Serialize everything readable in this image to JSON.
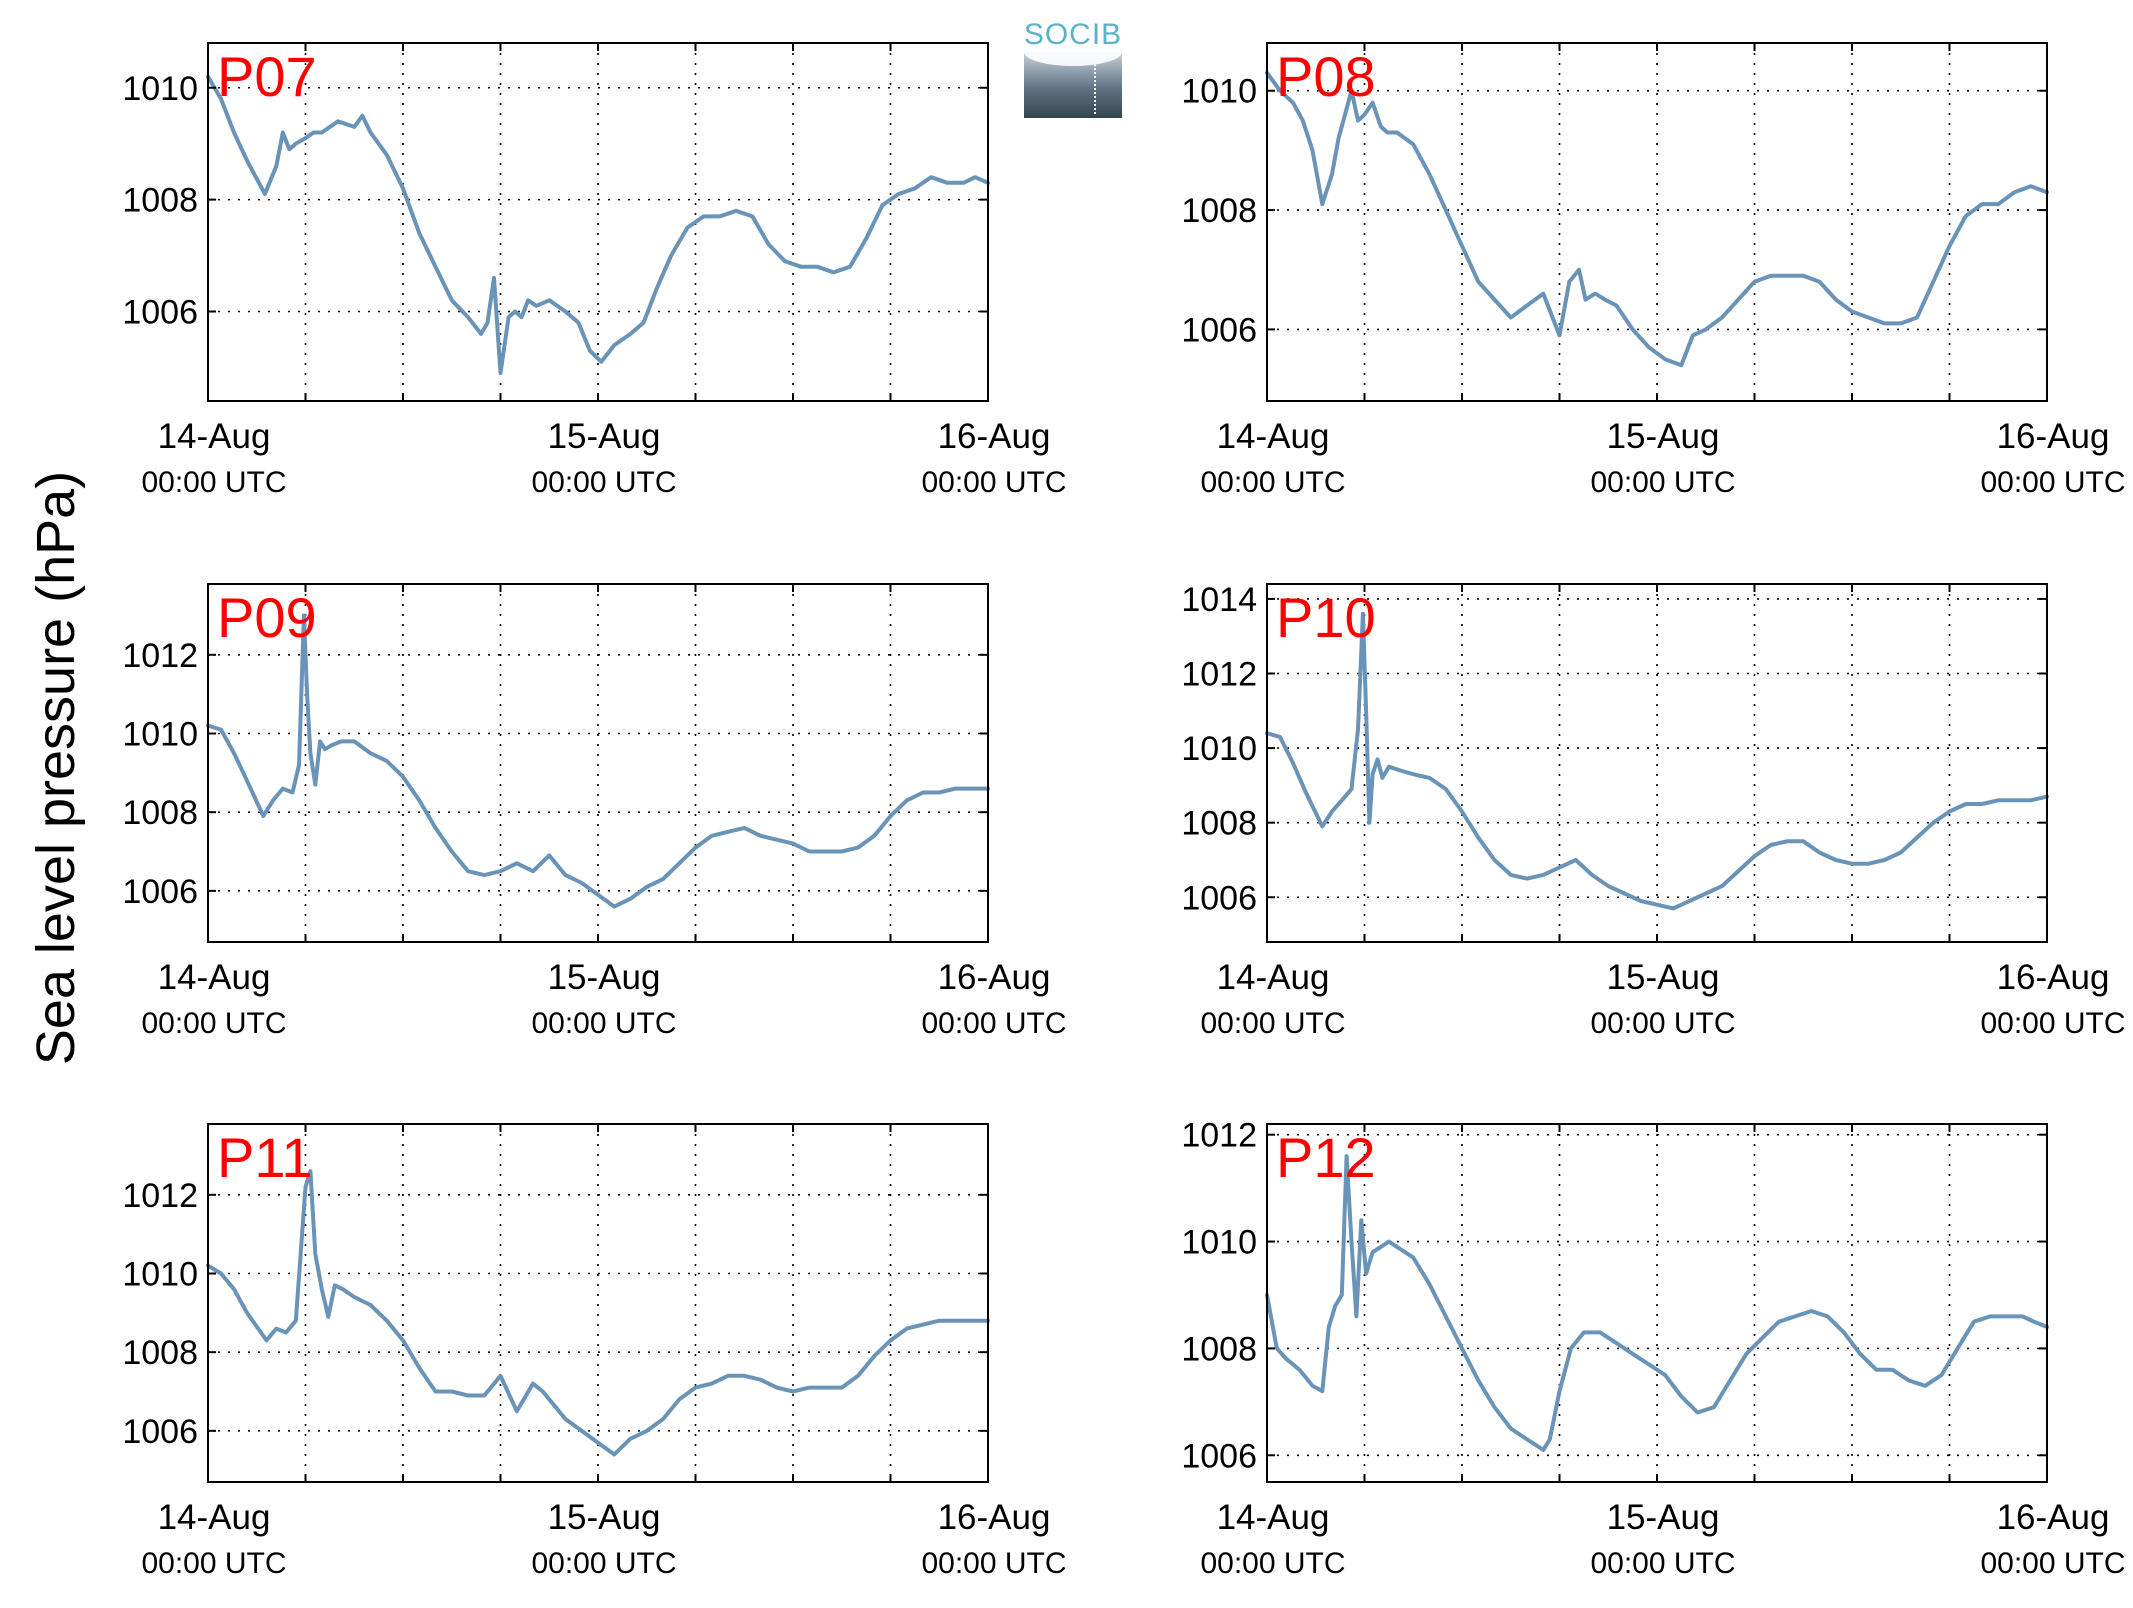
{
  "figure": {
    "ylabel": "Sea level pressure (hPa)",
    "logo_text": "SOCIB",
    "line_color": "#6a93b8",
    "station_label_color": "#ff0000",
    "grid": true
  },
  "chart_data": [
    {
      "type": "line",
      "station": "P07",
      "xlim": [
        0,
        48
      ],
      "ylim": [
        1004.4,
        1010.8
      ],
      "yticks": [
        1006,
        1008,
        1010
      ],
      "xticks": [
        {
          "at": 0,
          "date": "14-Aug",
          "time": "00:00 UTC"
        },
        {
          "at": 24,
          "date": "15-Aug",
          "time": "00:00 UTC"
        },
        {
          "at": 48,
          "date": "16-Aug",
          "time": "00:00 UTC"
        }
      ],
      "x": [
        0,
        0.8,
        1.6,
        2.4,
        3.5,
        4.2,
        4.6,
        5,
        5.4,
        6,
        6.5,
        7,
        8,
        9,
        9.5,
        10,
        11,
        12,
        13,
        14,
        15,
        16,
        16.8,
        17.2,
        17.6,
        18,
        18.5,
        18.9,
        19.3,
        19.7,
        20.2,
        21,
        22,
        22.8,
        23.5,
        24.2,
        25,
        26,
        26.8,
        27.6,
        28.5,
        29.5,
        30.5,
        31.5,
        32.5,
        33.5,
        34.5,
        35.5,
        36.5,
        37.5,
        38.5,
        39.5,
        40.5,
        41.5,
        42.5,
        43.5,
        44.5,
        45.5,
        46.5,
        47.2,
        48
      ],
      "y": [
        1010.2,
        1009.8,
        1009.2,
        1008.7,
        1008.1,
        1008.6,
        1009.2,
        1008.9,
        1009.0,
        1009.1,
        1009.2,
        1009.2,
        1009.4,
        1009.3,
        1009.5,
        1009.2,
        1008.8,
        1008.2,
        1007.4,
        1006.8,
        1006.2,
        1005.9,
        1005.6,
        1005.8,
        1006.6,
        1004.9,
        1005.9,
        1006.0,
        1005.9,
        1006.2,
        1006.1,
        1006.2,
        1006.0,
        1005.8,
        1005.3,
        1005.1,
        1005.4,
        1005.6,
        1005.8,
        1006.4,
        1007.0,
        1007.5,
        1007.7,
        1007.7,
        1007.8,
        1007.7,
        1007.2,
        1006.9,
        1006.8,
        1006.8,
        1006.7,
        1006.8,
        1007.3,
        1007.9,
        1008.1,
        1008.2,
        1008.4,
        1008.3,
        1008.3,
        1008.4,
        1008.3
      ]
    },
    {
      "type": "line",
      "station": "P08",
      "xlim": [
        0,
        48
      ],
      "ylim": [
        1004.8,
        1010.8
      ],
      "yticks": [
        1006,
        1008,
        1010
      ],
      "xticks": [
        {
          "at": 0,
          "date": "14-Aug",
          "time": "00:00 UTC"
        },
        {
          "at": 24,
          "date": "15-Aug",
          "time": "00:00 UTC"
        },
        {
          "at": 48,
          "date": "16-Aug",
          "time": "00:00 UTC"
        }
      ],
      "x": [
        0,
        0.8,
        1.6,
        2.2,
        2.8,
        3.4,
        4,
        4.4,
        4.8,
        5.2,
        5.6,
        6,
        6.5,
        7,
        7.4,
        8,
        9,
        10,
        11,
        12,
        13,
        14,
        15,
        16,
        17,
        18,
        18.6,
        19.2,
        19.6,
        20.2,
        20.8,
        21.5,
        22.5,
        23.5,
        24.5,
        25.5,
        26.2,
        27,
        28,
        29,
        30,
        31,
        32,
        33,
        34,
        35,
        36,
        37,
        38,
        39,
        40,
        41,
        42,
        43,
        44,
        45,
        46,
        47,
        48
      ],
      "y": [
        1010.3,
        1010.0,
        1009.8,
        1009.5,
        1009.0,
        1008.1,
        1008.6,
        1009.2,
        1009.6,
        1010.0,
        1009.5,
        1009.6,
        1009.8,
        1009.4,
        1009.3,
        1009.3,
        1009.1,
        1008.6,
        1008.0,
        1007.4,
        1006.8,
        1006.5,
        1006.2,
        1006.4,
        1006.6,
        1005.9,
        1006.8,
        1007.0,
        1006.5,
        1006.6,
        1006.5,
        1006.4,
        1006.0,
        1005.7,
        1005.5,
        1005.4,
        1005.9,
        1006.0,
        1006.2,
        1006.5,
        1006.8,
        1006.9,
        1006.9,
        1006.9,
        1006.8,
        1006.5,
        1006.3,
        1006.2,
        1006.1,
        1006.1,
        1006.2,
        1006.8,
        1007.4,
        1007.9,
        1008.1,
        1008.1,
        1008.3,
        1008.4,
        1008.3
      ]
    },
    {
      "type": "line",
      "station": "P09",
      "xlim": [
        0,
        48
      ],
      "ylim": [
        1004.7,
        1013.8
      ],
      "yticks": [
        1006,
        1008,
        1010,
        1012
      ],
      "xticks": [
        {
          "at": 0,
          "date": "14-Aug",
          "time": "00:00 UTC"
        },
        {
          "at": 24,
          "date": "15-Aug",
          "time": "00:00 UTC"
        },
        {
          "at": 48,
          "date": "16-Aug",
          "time": "00:00 UTC"
        }
      ],
      "x": [
        0,
        0.8,
        1.6,
        2.4,
        3.4,
        4,
        4.6,
        5.2,
        5.6,
        5.9,
        6.1,
        6.3,
        6.6,
        6.9,
        7.2,
        7.6,
        8.2,
        9,
        10,
        11,
        12,
        13,
        14,
        15,
        16,
        17,
        18,
        19,
        20,
        21,
        22,
        23,
        24,
        25,
        26,
        27,
        28,
        29,
        30,
        31,
        32,
        33,
        34,
        35,
        36,
        37,
        38,
        39,
        40,
        41,
        42,
        43,
        44,
        45,
        46,
        47,
        48
      ],
      "y": [
        1010.2,
        1010.1,
        1009.5,
        1008.8,
        1007.9,
        1008.3,
        1008.6,
        1008.5,
        1009.2,
        1013.0,
        1011.0,
        1009.5,
        1008.7,
        1009.8,
        1009.6,
        1009.7,
        1009.8,
        1009.8,
        1009.5,
        1009.3,
        1008.9,
        1008.3,
        1007.6,
        1007.0,
        1006.5,
        1006.4,
        1006.5,
        1006.7,
        1006.5,
        1006.9,
        1006.4,
        1006.2,
        1005.9,
        1005.6,
        1005.8,
        1006.1,
        1006.3,
        1006.7,
        1007.1,
        1007.4,
        1007.5,
        1007.6,
        1007.4,
        1007.3,
        1007.2,
        1007.0,
        1007.0,
        1007.0,
        1007.1,
        1007.4,
        1007.9,
        1008.3,
        1008.5,
        1008.5,
        1008.6,
        1008.6,
        1008.6
      ]
    },
    {
      "type": "line",
      "station": "P10",
      "xlim": [
        0,
        48
      ],
      "ylim": [
        1004.8,
        1014.4
      ],
      "yticks": [
        1006,
        1008,
        1010,
        1012,
        1014
      ],
      "xticks": [
        {
          "at": 0,
          "date": "14-Aug",
          "time": "00:00 UTC"
        },
        {
          "at": 24,
          "date": "15-Aug",
          "time": "00:00 UTC"
        },
        {
          "at": 48,
          "date": "16-Aug",
          "time": "00:00 UTC"
        }
      ],
      "x": [
        0,
        0.8,
        1.6,
        2.4,
        3.4,
        4,
        4.6,
        5.2,
        5.6,
        5.9,
        6.1,
        6.3,
        6.5,
        6.8,
        7.1,
        7.5,
        8.2,
        9,
        10,
        11,
        12,
        13,
        14,
        15,
        16,
        17,
        18,
        19,
        20,
        21,
        22,
        23,
        24,
        25,
        26,
        27,
        28,
        29,
        30,
        31,
        32,
        33,
        34,
        35,
        36,
        37,
        38,
        39,
        40,
        41,
        42,
        43,
        44,
        45,
        46,
        47,
        48
      ],
      "y": [
        1010.4,
        1010.3,
        1009.6,
        1008.8,
        1007.9,
        1008.3,
        1008.6,
        1008.9,
        1010.5,
        1013.6,
        1011.0,
        1008.0,
        1009.3,
        1009.7,
        1009.2,
        1009.5,
        1009.4,
        1009.3,
        1009.2,
        1008.9,
        1008.3,
        1007.6,
        1007.0,
        1006.6,
        1006.5,
        1006.6,
        1006.8,
        1007.0,
        1006.6,
        1006.3,
        1006.1,
        1005.9,
        1005.8,
        1005.7,
        1005.9,
        1006.1,
        1006.3,
        1006.7,
        1007.1,
        1007.4,
        1007.5,
        1007.5,
        1007.2,
        1007.0,
        1006.9,
        1006.9,
        1007.0,
        1007.2,
        1007.6,
        1008.0,
        1008.3,
        1008.5,
        1008.5,
        1008.6,
        1008.6,
        1008.6,
        1008.7
      ]
    },
    {
      "type": "line",
      "station": "P11",
      "xlim": [
        0,
        48
      ],
      "ylim": [
        1004.7,
        1013.8
      ],
      "yticks": [
        1006,
        1008,
        1010,
        1012
      ],
      "xticks": [
        {
          "at": 0,
          "date": "14-Aug",
          "time": "00:00 UTC"
        },
        {
          "at": 24,
          "date": "15-Aug",
          "time": "00:00 UTC"
        },
        {
          "at": 48,
          "date": "16-Aug",
          "time": "00:00 UTC"
        }
      ],
      "x": [
        0,
        0.8,
        1.6,
        2.4,
        3.6,
        4.2,
        4.8,
        5.4,
        6,
        6.3,
        6.6,
        7,
        7.4,
        7.8,
        8.3,
        9,
        10,
        11,
        12,
        13,
        14,
        15,
        16,
        17,
        18,
        19,
        20,
        20.6,
        21.2,
        22,
        23,
        24,
        25,
        26,
        27,
        28,
        29,
        30,
        31,
        32,
        33,
        34,
        35,
        36,
        37,
        38,
        39,
        40,
        41,
        42,
        43,
        44,
        45,
        46,
        47,
        48
      ],
      "y": [
        1010.2,
        1010.0,
        1009.6,
        1009.0,
        1008.3,
        1008.6,
        1008.5,
        1008.8,
        1012.2,
        1012.6,
        1010.5,
        1009.6,
        1008.9,
        1009.7,
        1009.6,
        1009.4,
        1009.2,
        1008.8,
        1008.3,
        1007.6,
        1007.0,
        1007.0,
        1006.9,
        1006.9,
        1007.4,
        1006.5,
        1007.2,
        1007.0,
        1006.7,
        1006.3,
        1006.0,
        1005.7,
        1005.4,
        1005.8,
        1006.0,
        1006.3,
        1006.8,
        1007.1,
        1007.2,
        1007.4,
        1007.4,
        1007.3,
        1007.1,
        1007.0,
        1007.1,
        1007.1,
        1007.1,
        1007.4,
        1007.9,
        1008.3,
        1008.6,
        1008.7,
        1008.8,
        1008.8,
        1008.8,
        1008.8
      ]
    },
    {
      "type": "line",
      "station": "P12",
      "xlim": [
        0,
        48
      ],
      "ylim": [
        1005.5,
        1012.2
      ],
      "yticks": [
        1006,
        1008,
        1010,
        1012
      ],
      "xticks": [
        {
          "at": 0,
          "date": "14-Aug",
          "time": "00:00 UTC"
        },
        {
          "at": 24,
          "date": "15-Aug",
          "time": "00:00 UTC"
        },
        {
          "at": 48,
          "date": "16-Aug",
          "time": "00:00 UTC"
        }
      ],
      "x": [
        0,
        0.6,
        1.2,
        2,
        2.8,
        3.4,
        3.8,
        4.2,
        4.6,
        4.9,
        5.2,
        5.5,
        5.8,
        6.1,
        6.5,
        7,
        7.5,
        8,
        9,
        10,
        11,
        12,
        13,
        14,
        15,
        16,
        17,
        17.4,
        18,
        18.7,
        19.5,
        20.5,
        21.5,
        22.5,
        23.5,
        24.5,
        25.5,
        26.5,
        27.5,
        28.5,
        29.5,
        30.5,
        31.5,
        32.5,
        33.5,
        34.5,
        35.5,
        36.5,
        37.5,
        38.5,
        39.5,
        40.5,
        41.5,
        42.5,
        43.5,
        44.5,
        45.5,
        46.5,
        47.2,
        48
      ],
      "y": [
        1009.0,
        1008.0,
        1007.8,
        1007.6,
        1007.3,
        1007.2,
        1008.4,
        1008.8,
        1009.0,
        1011.6,
        1010.0,
        1008.6,
        1010.4,
        1009.4,
        1009.8,
        1009.9,
        1010.0,
        1009.9,
        1009.7,
        1009.2,
        1008.6,
        1008.0,
        1007.4,
        1006.9,
        1006.5,
        1006.3,
        1006.1,
        1006.3,
        1007.2,
        1008.0,
        1008.3,
        1008.3,
        1008.1,
        1007.9,
        1007.7,
        1007.5,
        1007.1,
        1006.8,
        1006.9,
        1007.4,
        1007.9,
        1008.2,
        1008.5,
        1008.6,
        1008.7,
        1008.6,
        1008.3,
        1007.9,
        1007.6,
        1007.6,
        1007.4,
        1007.3,
        1007.5,
        1008.0,
        1008.5,
        1008.6,
        1008.6,
        1008.6,
        1008.5,
        1008.4
      ]
    }
  ]
}
